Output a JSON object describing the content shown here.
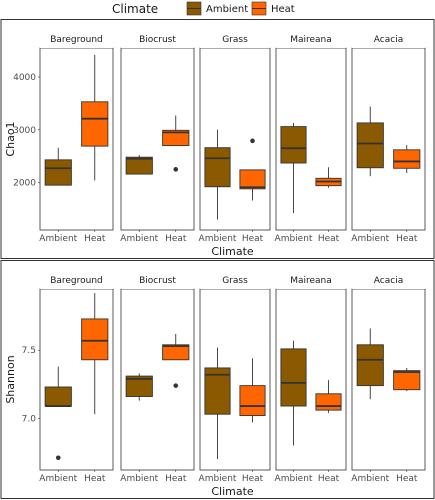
{
  "legend": {
    "title": "Climate",
    "entries": [
      {
        "label": "Ambient",
        "color": "#8B5A00"
      },
      {
        "label": "Heat",
        "color": "#FF6600"
      }
    ]
  },
  "chart_data": [
    {
      "type": "box",
      "ylabel": "Chao1",
      "xlabel": "Climate",
      "ylim": [
        1100,
        4550
      ],
      "yticks": [
        2000,
        3000,
        4000
      ],
      "categories": [
        "Ambient",
        "Heat"
      ],
      "facets": [
        {
          "name": "Bareground",
          "boxes": [
            {
              "group": "Ambient",
              "min": 1950,
              "q1": 1950,
              "median": 2270,
              "q3": 2430,
              "max": 2660,
              "outliers": []
            },
            {
              "group": "Heat",
              "min": 2040,
              "q1": 2690,
              "median": 3210,
              "q3": 3530,
              "max": 4420,
              "outliers": []
            }
          ]
        },
        {
          "name": "Biocrust",
          "boxes": [
            {
              "group": "Ambient",
              "min": 2160,
              "q1": 2160,
              "median": 2450,
              "q3": 2480,
              "max": 2520,
              "outliers": []
            },
            {
              "group": "Heat",
              "min": 2700,
              "q1": 2700,
              "median": 2950,
              "q3": 2990,
              "max": 3270,
              "outliers": [
                2250
              ]
            }
          ]
        },
        {
          "name": "Grass",
          "boxes": [
            {
              "group": "Ambient",
              "min": 1300,
              "q1": 1920,
              "median": 2460,
              "q3": 2660,
              "max": 3000,
              "outliers": []
            },
            {
              "group": "Heat",
              "min": 1660,
              "q1": 1880,
              "median": 1910,
              "q3": 2240,
              "max": 2240,
              "outliers": [
                2790
              ]
            }
          ]
        },
        {
          "name": "Maireana",
          "boxes": [
            {
              "group": "Ambient",
              "min": 1420,
              "q1": 2370,
              "median": 2650,
              "q3": 3060,
              "max": 3130,
              "outliers": []
            },
            {
              "group": "Heat",
              "min": 1900,
              "q1": 1940,
              "median": 2020,
              "q3": 2080,
              "max": 2290,
              "outliers": []
            }
          ]
        },
        {
          "name": "Acacia",
          "boxes": [
            {
              "group": "Ambient",
              "min": 2120,
              "q1": 2280,
              "median": 2740,
              "q3": 3130,
              "max": 3440,
              "outliers": []
            },
            {
              "group": "Heat",
              "min": 2180,
              "q1": 2270,
              "median": 2400,
              "q3": 2620,
              "max": 2710,
              "outliers": []
            }
          ]
        }
      ]
    },
    {
      "type": "box",
      "ylabel": "Shannon",
      "xlabel": "Climate",
      "ylim": [
        6.62,
        7.95
      ],
      "yticks": [
        7.0,
        7.5
      ],
      "categories": [
        "Ambient",
        "Heat"
      ],
      "facets": [
        {
          "name": "Bareground",
          "boxes": [
            {
              "group": "Ambient",
              "min": 7.09,
              "q1": 7.09,
              "median": 7.09,
              "q3": 7.23,
              "max": 7.38,
              "outliers": [
                6.71
              ]
            },
            {
              "group": "Heat",
              "min": 7.03,
              "q1": 7.43,
              "median": 7.57,
              "q3": 7.73,
              "max": 7.92,
              "outliers": []
            }
          ]
        },
        {
          "name": "Biocrust",
          "boxes": [
            {
              "group": "Ambient",
              "min": 7.13,
              "q1": 7.16,
              "median": 7.29,
              "q3": 7.31,
              "max": 7.33,
              "outliers": []
            },
            {
              "group": "Heat",
              "min": 7.43,
              "q1": 7.43,
              "median": 7.53,
              "q3": 7.54,
              "max": 7.62,
              "outliers": [
                7.24
              ]
            }
          ]
        },
        {
          "name": "Grass",
          "boxes": [
            {
              "group": "Ambient",
              "min": 6.7,
              "q1": 7.03,
              "median": 7.32,
              "q3": 7.37,
              "max": 7.52,
              "outliers": []
            },
            {
              "group": "Heat",
              "min": 6.97,
              "q1": 7.02,
              "median": 7.09,
              "q3": 7.24,
              "max": 7.44,
              "outliers": []
            }
          ]
        },
        {
          "name": "Maireana",
          "boxes": [
            {
              "group": "Ambient",
              "min": 6.8,
              "q1": 7.09,
              "median": 7.26,
              "q3": 7.51,
              "max": 7.57,
              "outliers": []
            },
            {
              "group": "Heat",
              "min": 7.04,
              "q1": 7.06,
              "median": 7.09,
              "q3": 7.18,
              "max": 7.28,
              "outliers": []
            }
          ]
        },
        {
          "name": "Acacia",
          "boxes": [
            {
              "group": "Ambient",
              "min": 7.14,
              "q1": 7.24,
              "median": 7.43,
              "q3": 7.54,
              "max": 7.66,
              "outliers": []
            },
            {
              "group": "Heat",
              "min": 7.2,
              "q1": 7.21,
              "median": 7.34,
              "q3": 7.35,
              "max": 7.37,
              "outliers": []
            }
          ]
        }
      ]
    }
  ]
}
